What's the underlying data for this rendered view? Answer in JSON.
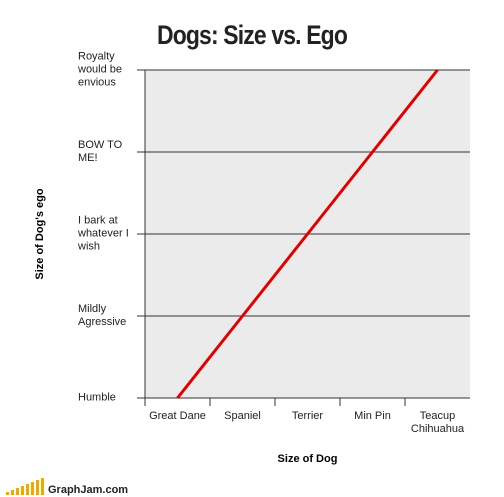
{
  "chart_data": {
    "type": "line",
    "title": "Dogs: Size vs. Ego",
    "x_label": "Size of Dog",
    "y_label": "Size of Dog's ego",
    "categories": [
      "Great Dane",
      "Spaniel",
      "Terrier",
      "Min Pin",
      "Teacup Chihuahua"
    ],
    "values": [
      0,
      1,
      2,
      3,
      4
    ],
    "color": "#e00000",
    "ylim": [
      0,
      4
    ],
    "yticks": [
      {
        "value": 0,
        "label": "Humble"
      },
      {
        "value": 1,
        "label": "Mildly Agressive"
      },
      {
        "value": 2,
        "label": "I bark at whatever I wish"
      },
      {
        "value": 3,
        "label": "BOW TO ME!"
      },
      {
        "value": 4,
        "label": "Royalty would be envious"
      }
    ],
    "grid": true
  },
  "watermark": "GraphJam.com"
}
